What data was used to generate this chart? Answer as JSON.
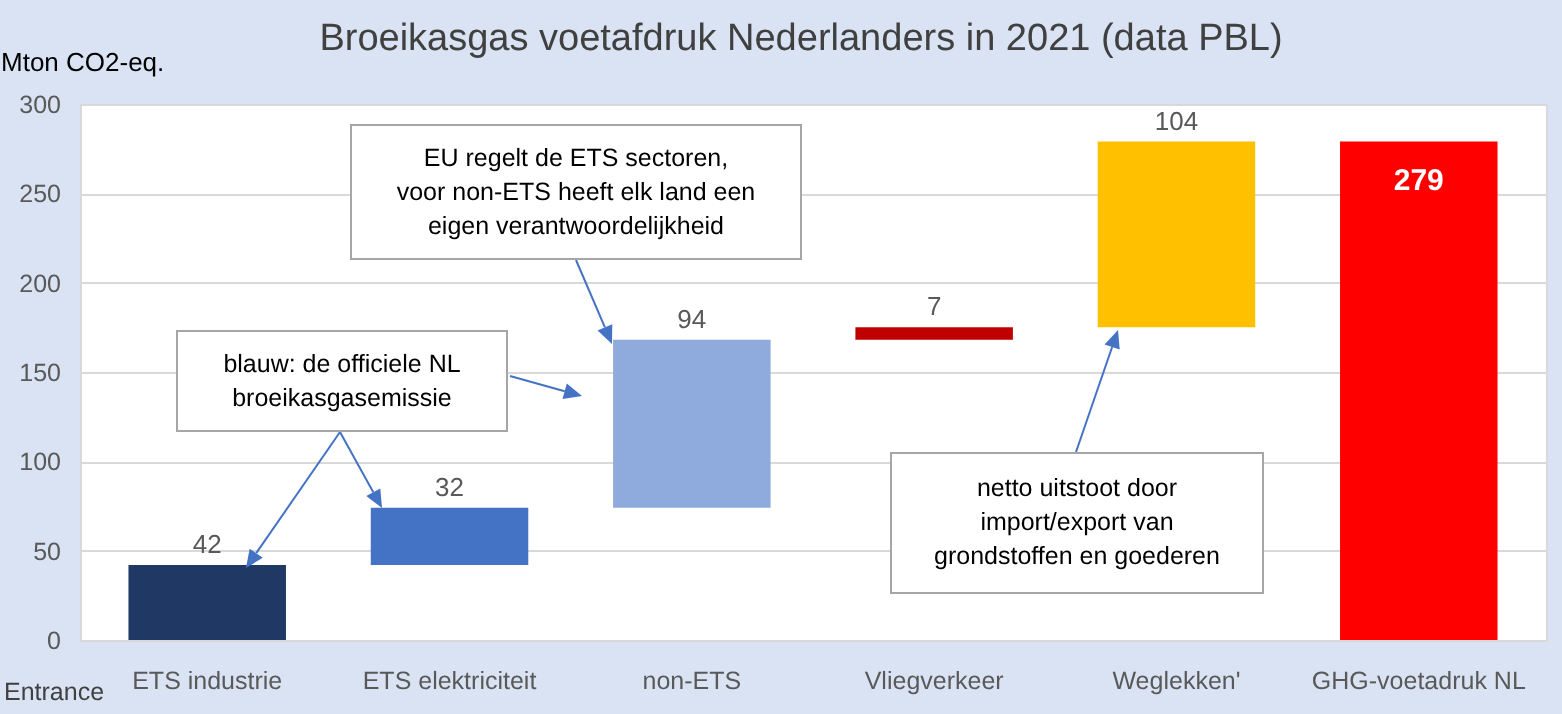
{
  "chart_data": {
    "type": "bar",
    "title": "Broeikasgas voetafdruk Nederlanders in 2021  (data PBL)",
    "ylabel": "Mton CO2-eq.",
    "categories": [
      "ETS industrie",
      "ETS elektriciteit",
      "non-ETS",
      "Vliegverkeer",
      "Weglekken'",
      "GHG-voetadruk NL"
    ],
    "values": [
      42,
      32,
      94,
      7,
      104,
      279
    ],
    "base": [
      0,
      42,
      74,
      168,
      175,
      0
    ],
    "colors": [
      "#203864",
      "#4472c4",
      "#8faadc",
      "#c00000",
      "#ffc000",
      "#ff0000"
    ],
    "ylim": [
      0,
      300
    ],
    "yticks": [
      0,
      50,
      100,
      150,
      200,
      250,
      300
    ],
    "grid": "y",
    "data_labels": true,
    "annotations": [
      "EU regelt de ETS sectoren,\nvoor non-ETS heeft elk land een\neigen verantwoordelijkheid",
      "blauw: de officiele NL\nbroeikasgasemissie",
      "netto uitstoot door\nimport/export van\ngrondstoffen en goederen",
      "Entrance"
    ]
  }
}
